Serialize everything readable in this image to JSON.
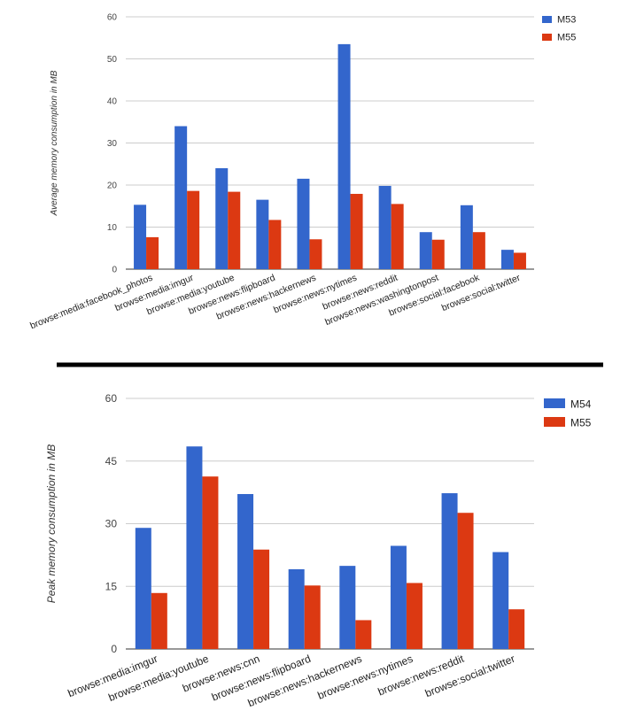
{
  "colors": {
    "blue": "#3366cc",
    "red": "#dc3912",
    "grid": "#cccccc",
    "divider": "#000000"
  },
  "chart_data": [
    {
      "type": "bar",
      "title": "",
      "xlabel": "",
      "ylabel": "Average memory consumption in MB",
      "ylim": [
        0,
        60
      ],
      "yticks": [
        "0",
        "10",
        "20",
        "30",
        "40",
        "50",
        "60"
      ],
      "grid": true,
      "legend": "top-right",
      "categories": [
        "browse:media:facebook_photos",
        "browse:media:imgur",
        "browse:media:youtube",
        "browse:news:flipboard",
        "browse:news:hackernews",
        "browse:news:nytimes",
        "browse:news:reddit",
        "browse:news:washingtonpost",
        "browse:social:facebook",
        "browse:social:twitter"
      ],
      "series": [
        {
          "name": "M53",
          "values": [
            15.3,
            34.0,
            24.0,
            16.5,
            21.5,
            53.5,
            19.8,
            8.8,
            15.2,
            4.6
          ]
        },
        {
          "name": "M55",
          "values": [
            7.6,
            18.6,
            18.4,
            11.7,
            7.1,
            17.9,
            15.5,
            7.0,
            8.8,
            3.9
          ]
        }
      ]
    },
    {
      "type": "bar",
      "title": "",
      "xlabel": "",
      "ylabel": "Peak memory consumption in MB",
      "ylim": [
        0,
        60
      ],
      "yticks": [
        "0",
        "15",
        "30",
        "45",
        "60"
      ],
      "grid": true,
      "legend": "top-right",
      "categories": [
        "browse:media:imgur",
        "browse:media:youtube",
        "browse:news:cnn",
        "browse:news:flipboard",
        "browse:news:hackernews",
        "browse:news:nytimes",
        "browse:news:reddit",
        "browse:social:twitter"
      ],
      "series": [
        {
          "name": "M54",
          "values": [
            29.0,
            48.5,
            37.1,
            19.1,
            19.9,
            24.7,
            37.3,
            23.2
          ]
        },
        {
          "name": "M55",
          "values": [
            13.4,
            41.3,
            23.8,
            15.2,
            6.9,
            15.8,
            32.6,
            9.5
          ]
        }
      ]
    }
  ]
}
